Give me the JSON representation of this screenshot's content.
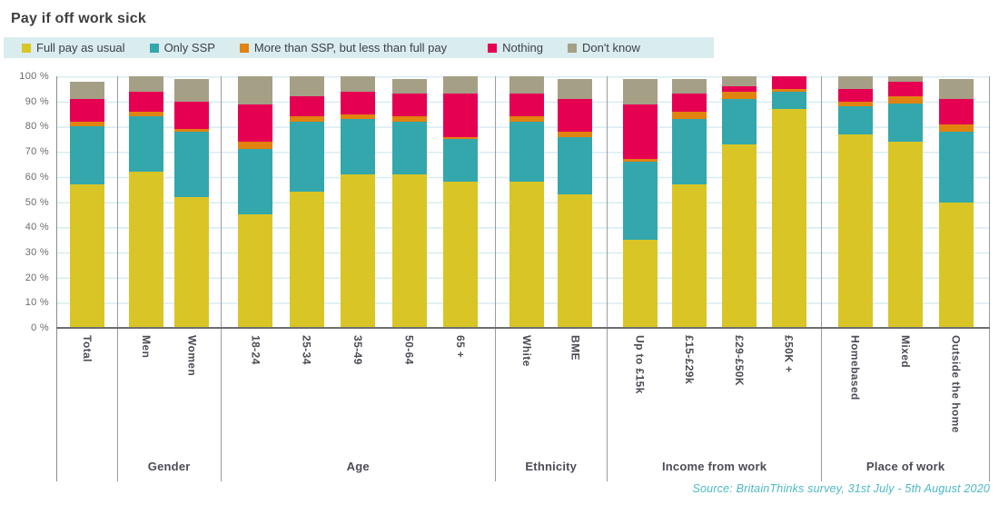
{
  "title": "Pay if off work sick",
  "source": "Source: BritainThinks survey, 31st July - 5th August 2020",
  "colors": {
    "full_pay": "#d9c526",
    "only_ssp": "#33a7ac",
    "more_than_ssp": "#e1830f",
    "nothing": "#e50052",
    "dont_know": "#a59f85",
    "legend_background": "#d9ecee",
    "gridline": "#d7ecf1",
    "axis": "#6e6e6e",
    "divider": "#9b9b9b",
    "label_text": "#4b4c55",
    "source_text": "#4db9c5"
  },
  "legend": {
    "items": [
      {
        "label": "Full pay as usual",
        "color": "#d9c526"
      },
      {
        "label": "Only SSP",
        "color": "#33a7ac"
      },
      {
        "label": "More than SSP, but less than full pay",
        "color": "#e1830f"
      },
      {
        "label": "Nothing",
        "color": "#e50052"
      },
      {
        "label": "Don't know",
        "color": "#a59f85"
      }
    ]
  },
  "y_axis": {
    "labels": [
      "100 %",
      "90 %",
      "80 %",
      "70 %",
      "60 %",
      "50 %",
      "40 %",
      "30 %",
      "20 %",
      "10 %",
      "0 %"
    ],
    "min": 0,
    "max": 100,
    "step": 10
  },
  "chart_data": {
    "type": "bar",
    "stacked": true,
    "unit": "%",
    "title": "Pay if off work sick",
    "ylim": [
      0,
      100
    ],
    "grid": true,
    "legend_position": "top",
    "series_names": [
      "Full pay as usual",
      "Only SSP",
      "More than SSP, but less than full pay",
      "Nothing",
      "Don't know"
    ],
    "series_colors": [
      "#d9c526",
      "#33a7ac",
      "#e1830f",
      "#e50052",
      "#a59f85"
    ],
    "groups": [
      {
        "label": "",
        "flex": 66,
        "categories": [
          "Total"
        ],
        "values": [
          [
            57,
            23,
            2,
            9,
            7
          ]
        ]
      },
      {
        "label": "Gender",
        "flex": 114,
        "categories": [
          "Men",
          "Women"
        ],
        "values": [
          [
            62,
            22,
            2,
            8,
            6
          ],
          [
            52,
            26,
            1,
            11,
            9
          ]
        ]
      },
      {
        "label": "Age",
        "flex": 303,
        "categories": [
          "18-24",
          "25-34",
          "35-49",
          "50-64",
          "65 +"
        ],
        "values": [
          [
            45,
            26,
            3,
            15,
            11
          ],
          [
            54,
            28,
            2,
            8,
            8
          ],
          [
            61,
            22,
            2,
            9,
            6
          ],
          [
            61,
            21,
            2,
            9,
            6
          ],
          [
            58,
            17,
            1,
            17,
            7
          ]
        ]
      },
      {
        "label": "Ethnicity",
        "flex": 123,
        "categories": [
          "White",
          "BME"
        ],
        "values": [
          [
            58,
            24,
            2,
            9,
            7
          ],
          [
            53,
            23,
            2,
            13,
            8
          ]
        ]
      },
      {
        "label": "Income from work",
        "flex": 237,
        "categories": [
          "Up to £15k",
          "£15-£29k",
          "£29-£50K",
          "£50K +"
        ],
        "values": [
          [
            35,
            31,
            1,
            22,
            10
          ],
          [
            57,
            26,
            3,
            7,
            6
          ],
          [
            73,
            18,
            3,
            2,
            4
          ],
          [
            87,
            7,
            1,
            5,
            0
          ]
        ]
      },
      {
        "label": "Place of work",
        "flex": 185,
        "categories": [
          "Homebased",
          "Mixed",
          "Outside the home"
        ],
        "values": [
          [
            77,
            11,
            2,
            5,
            5
          ],
          [
            74,
            15,
            3,
            6,
            2
          ],
          [
            50,
            28,
            3,
            10,
            8
          ]
        ]
      }
    ]
  }
}
